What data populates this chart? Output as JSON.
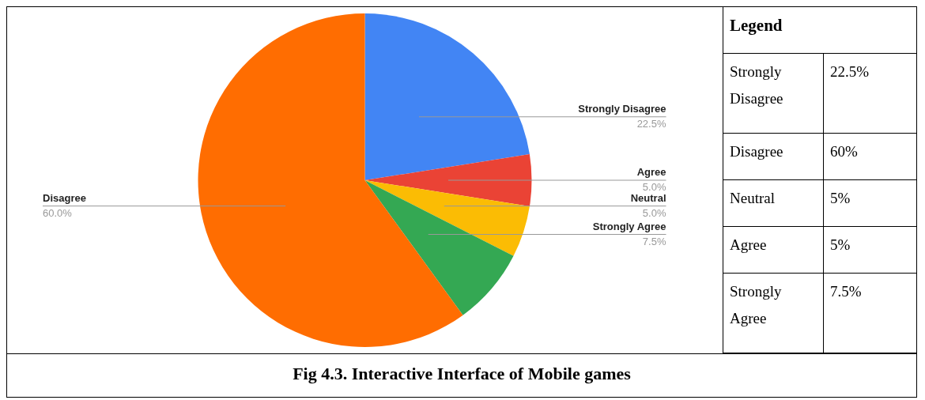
{
  "chart_data": {
    "type": "pie",
    "title": "Fig 4.3. Interactive Interface of Mobile games",
    "legend_title": "Legend",
    "categories": [
      "Strongly Disagree",
      "Agree",
      "Neutral",
      "Strongly Agree",
      "Disagree"
    ],
    "values": [
      22.5,
      5,
      5,
      7.5,
      60
    ],
    "colors": [
      "#4285f4",
      "#ea4335",
      "#fbbc04",
      "#34a853",
      "#ff6d01"
    ],
    "value_labels": [
      "22.5%",
      "5.0%",
      "5.0%",
      "7.5%",
      "60.0%"
    ],
    "annotations": [
      "Strongly Disagree",
      "22.5%",
      "Disagree",
      "60%",
      "Neutral",
      "5%",
      "Agree",
      "5%",
      "Strongly Agree",
      "7.5%"
    ]
  }
}
